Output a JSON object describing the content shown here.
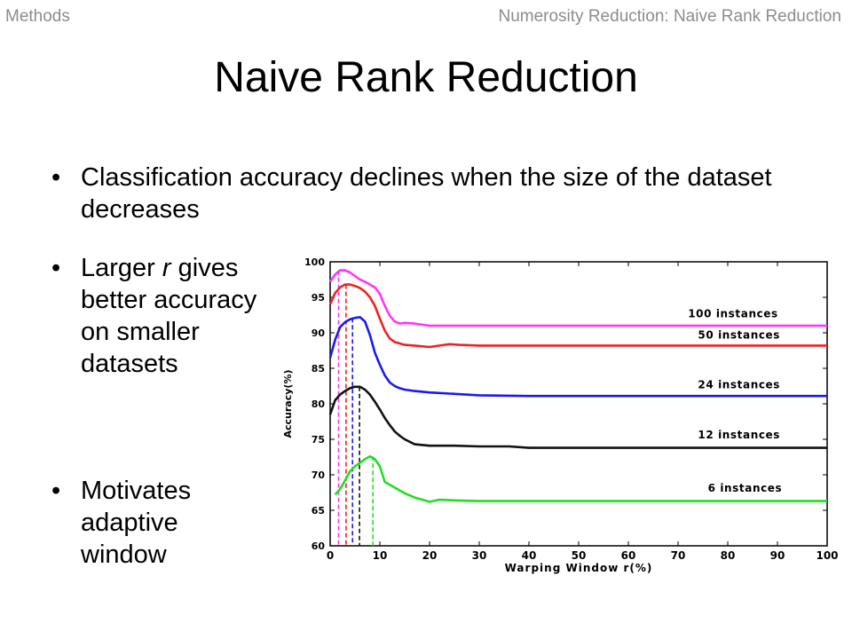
{
  "header": {
    "section": "Methods",
    "slide_topic": "Numerosity Reduction: Naive Rank Reduction"
  },
  "title": "Naive Rank Reduction",
  "bullets": [
    {
      "glyph": "•",
      "text": "Classification accuracy declines when the size of the dataset decreases"
    },
    {
      "glyph": "•",
      "text": "Larger r gives better accuracy on smaller datasets",
      "text_before": "Larger ",
      "italic": "r",
      "text_after": " gives better accuracy on smaller datasets"
    },
    {
      "glyph": "•",
      "text": "Motivates adaptive window"
    }
  ],
  "chart_data": {
    "type": "line",
    "xlabel": "Warping Window r(%)",
    "ylabel": "Accuracy(%)",
    "xlim": [
      0,
      100
    ],
    "ylim": [
      60,
      100
    ],
    "x_ticks": [
      0,
      10,
      20,
      30,
      40,
      50,
      60,
      70,
      80,
      90,
      100
    ],
    "y_ticks": [
      60,
      65,
      70,
      75,
      80,
      85,
      90,
      95,
      100
    ],
    "grid": false,
    "series": [
      {
        "name": "100 instances",
        "color": "#ff33ff",
        "x": [
          0,
          1,
          2,
          3,
          4,
          5,
          6,
          7,
          8,
          9,
          10,
          11,
          12,
          13,
          14,
          15,
          17,
          20,
          25,
          30,
          40,
          50,
          60,
          70,
          80,
          90,
          100
        ],
        "y": [
          97.2,
          98.2,
          98.8,
          98.8,
          98.5,
          98,
          97.5,
          97.2,
          96.8,
          96.4,
          95.5,
          93.8,
          92.4,
          91.6,
          91.3,
          91.4,
          91.3,
          91,
          91,
          91,
          91,
          91,
          91,
          91,
          91,
          91,
          91
        ]
      },
      {
        "name": "50 instances",
        "color": "#ee2222",
        "x": [
          0,
          1,
          2,
          3,
          4,
          5,
          6,
          7,
          8,
          9,
          10,
          11,
          12,
          13,
          14,
          15,
          17,
          20,
          22,
          24,
          26,
          30,
          40,
          50,
          60,
          70,
          80,
          90,
          100
        ],
        "y": [
          94,
          95.6,
          96.4,
          96.8,
          96.8,
          96.6,
          96.3,
          95.8,
          95,
          93.8,
          92,
          90.3,
          89.2,
          88.7,
          88.5,
          88.3,
          88.2,
          88,
          88.2,
          88.4,
          88.3,
          88.2,
          88.2,
          88.2,
          88.2,
          88.2,
          88.2,
          88.2,
          88.2
        ]
      },
      {
        "name": "24 instances",
        "color": "#1a1aee",
        "x": [
          0,
          1,
          2,
          3,
          4,
          5,
          6,
          7,
          8,
          9,
          10,
          11,
          12,
          13,
          14,
          15,
          17,
          20,
          25,
          30,
          40,
          50,
          60,
          70,
          80,
          90,
          100
        ],
        "y": [
          86.5,
          89,
          90.8,
          91.5,
          91.9,
          92.1,
          92.2,
          91.6,
          89.7,
          87.2,
          85.5,
          84,
          83,
          82.5,
          82.2,
          82,
          81.8,
          81.6,
          81.4,
          81.2,
          81.1,
          81.1,
          81.1,
          81.1,
          81.1,
          81.1,
          81.1
        ]
      },
      {
        "name": "12 instances",
        "color": "#111111",
        "x": [
          0,
          1,
          2,
          3,
          4,
          5,
          6,
          7,
          8,
          9,
          10,
          11,
          12,
          13,
          14,
          15,
          17,
          20,
          25,
          30,
          36,
          40,
          50,
          60,
          70,
          80,
          90,
          100
        ],
        "y": [
          78.5,
          80.5,
          81.3,
          81.8,
          82.2,
          82.4,
          82.4,
          82,
          81.3,
          80.3,
          79.2,
          78,
          77,
          76.1,
          75.5,
          75,
          74.3,
          74.1,
          74.1,
          74,
          74,
          73.8,
          73.8,
          73.8,
          73.8,
          73.8,
          73.8,
          73.8
        ]
      },
      {
        "name": "6 instances",
        "color": "#22dd22",
        "x": [
          1,
          2,
          3,
          4,
          5,
          6,
          7,
          8,
          9,
          10,
          11,
          12,
          13,
          14,
          15,
          17,
          19,
          20,
          22,
          25,
          30,
          40,
          50,
          60,
          70,
          80,
          90,
          100
        ],
        "y": [
          67.2,
          68,
          69.2,
          70.5,
          71.2,
          71.7,
          72.2,
          72.6,
          72.2,
          71.2,
          69,
          68.6,
          68.2,
          67.8,
          67.4,
          66.8,
          66.4,
          66.2,
          66.5,
          66.4,
          66.3,
          66.3,
          66.3,
          66.3,
          66.3,
          66.3,
          66.3,
          66.3
        ]
      }
    ],
    "legend_labels": [
      {
        "text": "100 instances",
        "x": 72,
        "y": 92.2
      },
      {
        "text": "50 instances",
        "x": 74,
        "y": 89.2
      },
      {
        "text": "24 instances",
        "x": 74,
        "y": 82.2
      },
      {
        "text": "12 instances",
        "x": 74,
        "y": 75.1
      },
      {
        "text": "6 instances",
        "x": 76,
        "y": 67.6
      }
    ],
    "optimal_window_markers": [
      {
        "series": "100 instances",
        "x": 1.7,
        "y": 98.8,
        "color": "#ff33ff"
      },
      {
        "series": "50 instances",
        "x": 3.2,
        "y": 96.8,
        "color": "#ee2222"
      },
      {
        "series": "24 instances",
        "x": 4.5,
        "y": 92.1,
        "color": "#1a1aee"
      },
      {
        "series": "12 instances",
        "x": 5.9,
        "y": 82.4,
        "color": "#111111"
      },
      {
        "series": "6 instances",
        "x": 8.6,
        "y": 72.6,
        "color": "#22dd22"
      }
    ]
  }
}
